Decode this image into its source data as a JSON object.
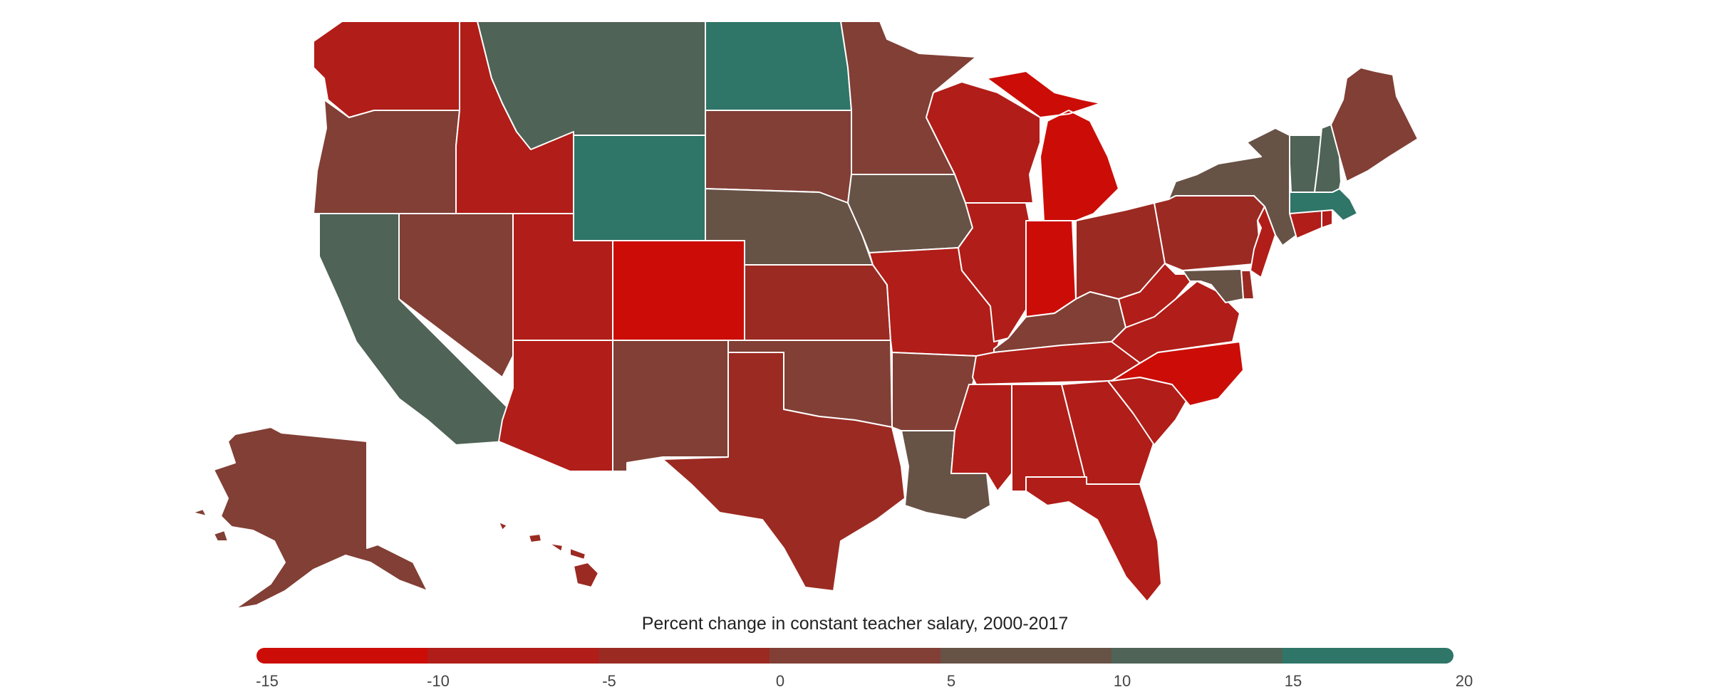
{
  "legend": {
    "title": "Percent change in constant teacher salary, 2000-2017",
    "ticks": [
      "-15",
      "-10",
      "-5",
      "0",
      "5",
      "10",
      "15",
      "20"
    ],
    "bins": [
      {
        "min": -15,
        "max": -10,
        "color": "#cc0d07"
      },
      {
        "min": -10,
        "max": -5,
        "color": "#b11d18"
      },
      {
        "min": -5,
        "max": 0,
        "color": "#9b2a22"
      },
      {
        "min": 0,
        "max": 5,
        "color": "#813f35"
      },
      {
        "min": 5,
        "max": 10,
        "color": "#675246"
      },
      {
        "min": 10,
        "max": 15,
        "color": "#4f6356"
      },
      {
        "min": 15,
        "max": 20,
        "color": "#2f7568"
      }
    ]
  },
  "states": {
    "WA": "#b11d18",
    "OR": "#813f35",
    "CA": "#4f6356",
    "NV": "#813f35",
    "ID": "#b11d18",
    "MT": "#4f6356",
    "WY": "#2f7568",
    "UT": "#b11d18",
    "AZ": "#b11d18",
    "CO": "#cc0d07",
    "NM": "#813f35",
    "ND": "#2f7568",
    "SD": "#813f35",
    "NE": "#675246",
    "KS": "#9b2a22",
    "OK": "#813f35",
    "TX": "#9b2a22",
    "MN": "#813f35",
    "IA": "#675246",
    "MO": "#b11d18",
    "AR": "#813f35",
    "LA": "#675246",
    "WI": "#b11d18",
    "IL": "#b11d18",
    "MI": "#cc0d07",
    "IN": "#cc0d07",
    "OH": "#9b2a22",
    "KY": "#813f35",
    "TN": "#b11d18",
    "MS": "#b11d18",
    "AL": "#b11d18",
    "GA": "#b11d18",
    "FL": "#b11d18",
    "SC": "#b11d18",
    "NC": "#cc0d07",
    "VA": "#b11d18",
    "WV": "#b11d18",
    "PA": "#9b2a22",
    "NY": "#675246",
    "NJ": "#b11d18",
    "DE": "#9b2a22",
    "MD": "#675246",
    "CT": "#b11d18",
    "RI": "#b11d18",
    "MA": "#2f7568",
    "VT": "#4f6356",
    "NH": "#4f6356",
    "ME": "#813f35",
    "AK": "#813f35",
    "HI": "#9b2a22"
  }
}
